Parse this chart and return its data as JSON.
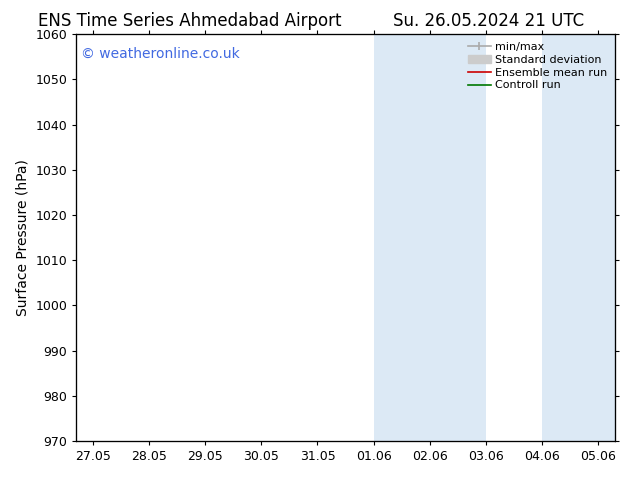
{
  "title_left": "ENS Time Series Ahmedabad Airport",
  "title_right": "Su. 26.05.2024 21 UTC",
  "ylabel": "Surface Pressure (hPa)",
  "ylim": [
    970,
    1060
  ],
  "yticks": [
    970,
    980,
    990,
    1000,
    1010,
    1020,
    1030,
    1040,
    1050,
    1060
  ],
  "xtick_labels": [
    "27.05",
    "28.05",
    "29.05",
    "30.05",
    "31.05",
    "01.06",
    "02.06",
    "03.06",
    "04.06",
    "05.06"
  ],
  "xtick_positions": [
    0,
    1,
    2,
    3,
    4,
    5,
    6,
    7,
    8,
    9
  ],
  "xlim": [
    -0.3,
    9.3
  ],
  "shaded_bands": [
    {
      "x_start": 5.0,
      "x_end": 7.0
    },
    {
      "x_start": 8.0,
      "x_end": 9.3
    }
  ],
  "shaded_color": "#dce9f5",
  "background_color": "#ffffff",
  "watermark_text": "© weatheronline.co.uk",
  "watermark_color": "#4169E1",
  "legend_entries": [
    {
      "label": "min/max",
      "color": "#aaaaaa",
      "lw": 1.2
    },
    {
      "label": "Standard deviation",
      "color": "#cccccc",
      "lw": 6
    },
    {
      "label": "Ensemble mean run",
      "color": "#cc0000",
      "lw": 1.2
    },
    {
      "label": "Controll run",
      "color": "#007700",
      "lw": 1.2
    }
  ],
  "title_fontsize": 12,
  "tick_fontsize": 9,
  "ylabel_fontsize": 10,
  "watermark_fontsize": 10,
  "legend_fontsize": 8
}
